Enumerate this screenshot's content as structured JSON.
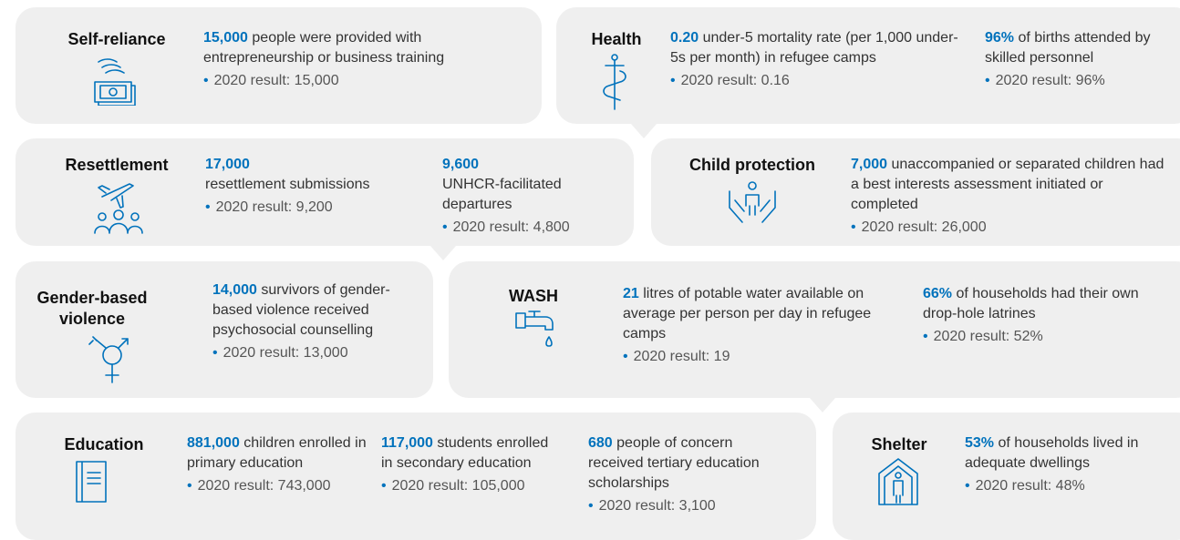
{
  "panels": [
    {
      "title": "Self-reliance",
      "items": [
        {
          "highlight": "15,000",
          "text": "people were provided with entrepreneurship or business training",
          "result": "2020 result: 15,000"
        }
      ]
    },
    {
      "title": "Health",
      "items": [
        {
          "highlight": "0.20",
          "text": "under-5 mortality rate (per 1,000 under-5s per month) in refugee camps",
          "result": "2020 result: 0.16"
        },
        {
          "highlight": "96%",
          "text": "of births attended by skilled personnel",
          "result": "2020 result: 96%"
        }
      ]
    },
    {
      "title": "Resettlement",
      "items": [
        {
          "highlight": "17,000",
          "text": "resettlement submissions",
          "result": "2020 result: 9,200"
        },
        {
          "highlight": "9,600",
          "text": "UNHCR-facilitated departures",
          "result": "2020 result: 4,800"
        }
      ]
    },
    {
      "title": "Child protection",
      "items": [
        {
          "highlight": "7,000",
          "text": "unaccompanied or separated children had a best interests assessment initiated or completed",
          "result": "2020 result: 26,000"
        }
      ]
    },
    {
      "title": "Gender-based violence",
      "items": [
        {
          "highlight": "14,000",
          "text": "survivors of gender-based violence received psychosocial counselling",
          "result": "2020 result: 13,000"
        }
      ]
    },
    {
      "title": "WASH",
      "items": [
        {
          "highlight": "21",
          "text": "litres of potable water available on average per person per day in refugee camps",
          "result": "2020 result: 19"
        },
        {
          "highlight": "66%",
          "text": "of households had their own drop-hole latrines",
          "result": "2020 result: 52%"
        }
      ]
    },
    {
      "title": "Education",
      "items": [
        {
          "highlight": "881,000",
          "text": "children enrolled in primary education",
          "result": "2020 result: 743,000"
        },
        {
          "highlight": "117,000",
          "text": "students enrolled in secondary education",
          "result": "2020 result: 105,000"
        },
        {
          "highlight": "680",
          "text": "people of concern received tertiary education scholarships",
          "result": "2020 result: 3,100"
        }
      ]
    },
    {
      "title": "Shelter",
      "items": [
        {
          "highlight": "53%",
          "text": "of households lived in adequate dwellings",
          "result": "2020 result: 48%"
        }
      ]
    }
  ]
}
